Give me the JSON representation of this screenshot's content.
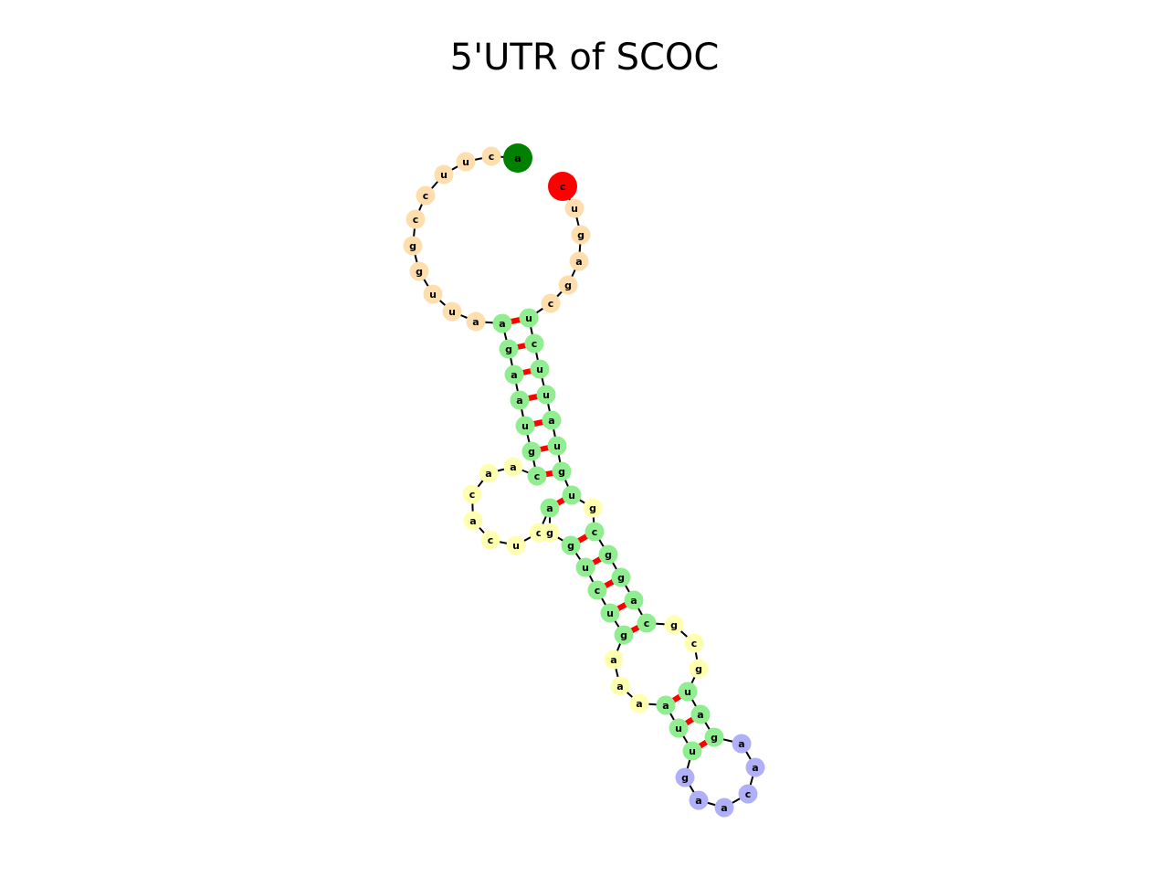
{
  "title": "5'UTR of SCOC",
  "structure": {
    "colors": {
      "start": "#008000",
      "end": "#ff0000",
      "unpaired_exterior": "#ffdead",
      "stem": "#90ee90",
      "internal_loop": "#ffffb0",
      "hairpin": "#b0b0f8",
      "pair_bond": "#ff0000",
      "backbone": "#000000"
    },
    "nucleotides": [
      {
        "base": "a",
        "role": "start"
      },
      {
        "base": "c",
        "role": "unpaired_exterior"
      },
      {
        "base": "u",
        "role": "unpaired_exterior"
      },
      {
        "base": "u",
        "role": "unpaired_exterior"
      },
      {
        "base": "c",
        "role": "unpaired_exterior"
      },
      {
        "base": "c",
        "role": "unpaired_exterior"
      },
      {
        "base": "g",
        "role": "unpaired_exterior"
      },
      {
        "base": "g",
        "role": "unpaired_exterior"
      },
      {
        "base": "u",
        "role": "unpaired_exterior"
      },
      {
        "base": "u",
        "role": "unpaired_exterior"
      },
      {
        "base": "a",
        "role": "unpaired_exterior"
      },
      {
        "base": "a",
        "role": "stem"
      },
      {
        "base": "g",
        "role": "stem"
      },
      {
        "base": "a",
        "role": "stem"
      },
      {
        "base": "a",
        "role": "stem"
      },
      {
        "base": "u",
        "role": "stem"
      },
      {
        "base": "g",
        "role": "stem"
      },
      {
        "base": "c",
        "role": "stem"
      },
      {
        "base": "a",
        "role": "internal_loop"
      },
      {
        "base": "a",
        "role": "internal_loop"
      },
      {
        "base": "c",
        "role": "internal_loop"
      },
      {
        "base": "a",
        "role": "internal_loop"
      },
      {
        "base": "c",
        "role": "internal_loop"
      },
      {
        "base": "u",
        "role": "internal_loop"
      },
      {
        "base": "c",
        "role": "internal_loop"
      },
      {
        "base": "a",
        "role": "stem"
      },
      {
        "base": "g",
        "role": "internal_loop"
      },
      {
        "base": "g",
        "role": "stem"
      },
      {
        "base": "u",
        "role": "stem"
      },
      {
        "base": "c",
        "role": "stem"
      },
      {
        "base": "u",
        "role": "stem"
      },
      {
        "base": "g",
        "role": "stem"
      },
      {
        "base": "a",
        "role": "internal_loop"
      },
      {
        "base": "a",
        "role": "internal_loop"
      },
      {
        "base": "a",
        "role": "internal_loop"
      },
      {
        "base": "a",
        "role": "stem"
      },
      {
        "base": "u",
        "role": "stem"
      },
      {
        "base": "u",
        "role": "stem"
      },
      {
        "base": "g",
        "role": "hairpin"
      },
      {
        "base": "a",
        "role": "hairpin"
      },
      {
        "base": "a",
        "role": "hairpin"
      },
      {
        "base": "c",
        "role": "hairpin"
      },
      {
        "base": "a",
        "role": "hairpin"
      },
      {
        "base": "a",
        "role": "hairpin"
      },
      {
        "base": "g",
        "role": "stem"
      },
      {
        "base": "a",
        "role": "stem"
      },
      {
        "base": "u",
        "role": "stem"
      },
      {
        "base": "g",
        "role": "internal_loop"
      },
      {
        "base": "c",
        "role": "internal_loop"
      },
      {
        "base": "g",
        "role": "internal_loop"
      },
      {
        "base": "c",
        "role": "stem"
      },
      {
        "base": "a",
        "role": "stem"
      },
      {
        "base": "g",
        "role": "stem"
      },
      {
        "base": "g",
        "role": "stem"
      },
      {
        "base": "c",
        "role": "stem"
      },
      {
        "base": "g",
        "role": "internal_loop"
      },
      {
        "base": "u",
        "role": "stem"
      },
      {
        "base": "g",
        "role": "stem"
      },
      {
        "base": "u",
        "role": "stem"
      },
      {
        "base": "a",
        "role": "stem"
      },
      {
        "base": "u",
        "role": "stem"
      },
      {
        "base": "u",
        "role": "stem"
      },
      {
        "base": "c",
        "role": "stem"
      },
      {
        "base": "u",
        "role": "stem"
      },
      {
        "base": "c",
        "role": "unpaired_exterior"
      },
      {
        "base": "g",
        "role": "unpaired_exterior"
      },
      {
        "base": "a",
        "role": "unpaired_exterior"
      },
      {
        "base": "g",
        "role": "unpaired_exterior"
      },
      {
        "base": "u",
        "role": "unpaired_exterior"
      },
      {
        "base": "c",
        "role": "end"
      }
    ],
    "pairs": [
      [
        11,
        63
      ],
      [
        12,
        62
      ],
      [
        13,
        61
      ],
      [
        14,
        60
      ],
      [
        15,
        59
      ],
      [
        16,
        58
      ],
      [
        17,
        57
      ],
      [
        25,
        56
      ],
      [
        27,
        54
      ],
      [
        28,
        53
      ],
      [
        29,
        52
      ],
      [
        30,
        51
      ],
      [
        31,
        50
      ],
      [
        35,
        46
      ],
      [
        36,
        45
      ],
      [
        37,
        44
      ]
    ]
  }
}
